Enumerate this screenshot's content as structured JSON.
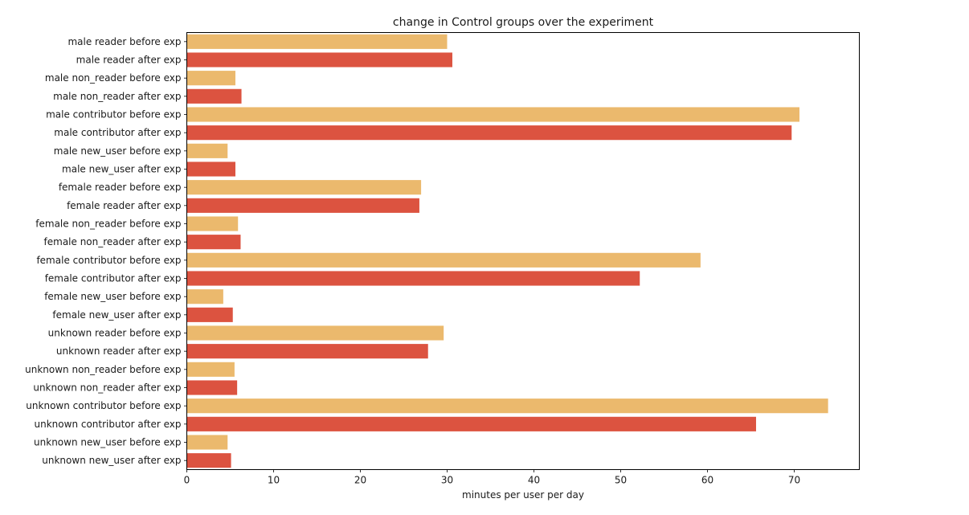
{
  "chart_data": {
    "type": "bar",
    "orientation": "horizontal",
    "title": "change in Control groups over the experiment",
    "xlabel": "minutes per user per day",
    "ylabel": "",
    "xlim": [
      0,
      77.5
    ],
    "xticks": [
      0,
      10,
      20,
      30,
      40,
      50,
      60,
      70
    ],
    "grid": false,
    "legend": "none",
    "colors": {
      "before": "#ebb96d",
      "after": "#dc5340"
    },
    "categories": [
      "male reader before exp",
      "male reader after exp",
      "male non_reader before exp",
      "male non_reader after exp",
      "male contributor before exp",
      "male contributor after exp",
      "male new_user before exp",
      "male new_user after exp",
      "female reader before exp",
      "female reader after exp",
      "female non_reader before exp",
      "female non_reader after exp",
      "female contributor before exp",
      "female contributor after exp",
      "female new_user before exp",
      "female new_user after exp",
      "unknown reader before exp",
      "unknown reader after exp",
      "unknown non_reader before exp",
      "unknown non_reader after exp",
      "unknown contributor before exp",
      "unknown contributor after exp",
      "unknown new_user before exp",
      "unknown new_user after exp"
    ],
    "values": [
      30.0,
      30.6,
      5.6,
      6.3,
      70.6,
      69.7,
      4.7,
      5.6,
      27.0,
      26.8,
      5.9,
      6.2,
      59.2,
      52.2,
      4.2,
      5.3,
      29.6,
      27.8,
      5.5,
      5.8,
      73.9,
      65.6,
      4.7,
      5.1
    ]
  }
}
